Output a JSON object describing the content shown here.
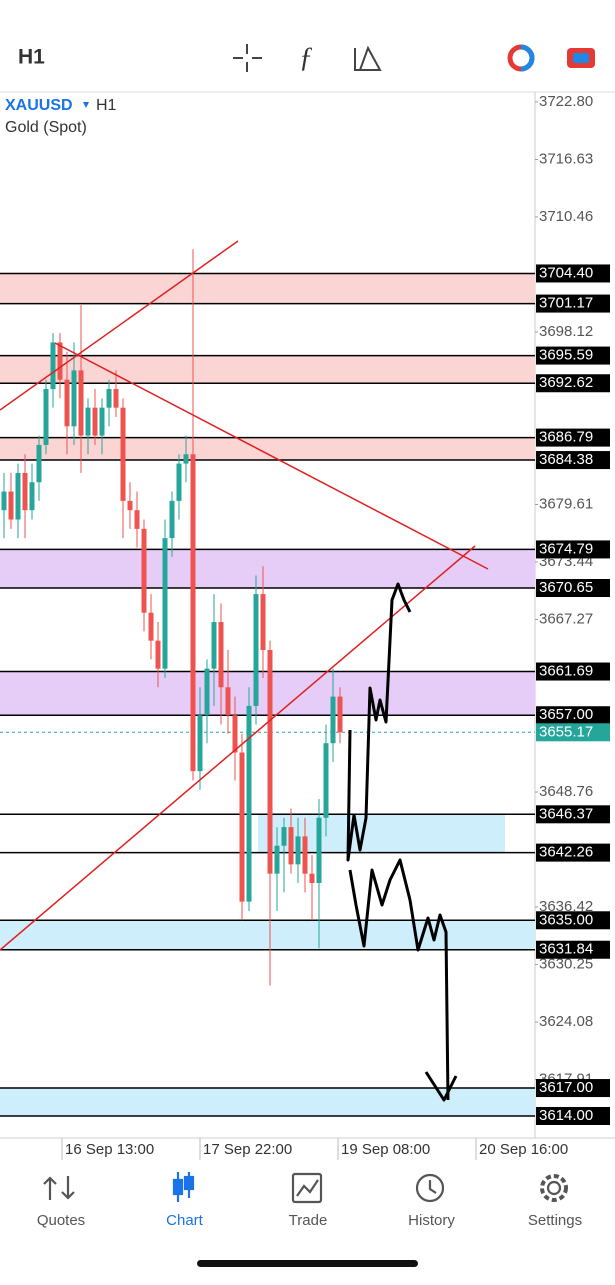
{
  "top_bar": {
    "timeframe": "H1"
  },
  "chart_data": {
    "type": "candlestick",
    "symbol": "XAUUSD",
    "timeframe": "H1",
    "description": "Gold (Spot)",
    "ylim": [
      3611.64,
      3723.87
    ],
    "yticks": [
      {
        "value": 3722.8,
        "label": "3722.80"
      },
      3716.63,
      3710.46,
      3698.12,
      3679.61,
      3673.44,
      3667.27,
      3648.76,
      3636.42,
      3630.25,
      3624.08,
      3617.91
    ],
    "levels": [
      {
        "value": 3704.4,
        "label": "3704.40"
      },
      3701.17,
      3695.59,
      3692.62,
      3686.79,
      3684.38,
      3674.79,
      3670.65,
      3661.69,
      {
        "value": 3657,
        "label": "3657.00"
      },
      3646.37,
      3642.26,
      {
        "value": 3635,
        "label": "3635.00"
      },
      3631.84,
      {
        "value": 3617,
        "label": "3617.00"
      },
      {
        "value": 3614,
        "label": "3614.00"
      }
    ],
    "zones": [
      {
        "high": 3704.4,
        "low": 3701.17,
        "color": "#fbd4d4"
      },
      {
        "high": 3695.59,
        "low": 3692.62,
        "color": "#fbd4d4"
      },
      {
        "high": 3686.79,
        "low": 3684.38,
        "color": "#fbd4d4"
      },
      {
        "high": 3674.79,
        "low": 3670.65,
        "color": "#e6cdf7"
      },
      {
        "high": 3661.69,
        "low": 3657,
        "color": "#e6cdf7"
      },
      {
        "high": 3646.37,
        "low": 3642.26,
        "color": "#cdeefa",
        "partial": true
      },
      {
        "high": 3635,
        "low": 3631.84,
        "color": "#cdeefa"
      },
      {
        "high": 3617,
        "low": 3614,
        "color": "#cdeefa"
      }
    ],
    "current_price": 3655.17,
    "up_color": "#26a69a",
    "down_color": "#ef5350",
    "x_labels": [
      "16 Sep 13:00",
      "17 Sep 22:00",
      "19 Sep 08:00",
      "20 Sep 16:00"
    ],
    "candles": [
      [
        3679,
        3683,
        3676,
        3681
      ],
      [
        3681,
        3683,
        3677,
        3678
      ],
      [
        3678,
        3684,
        3676,
        3683
      ],
      [
        3683,
        3685,
        3676,
        3679
      ],
      [
        3679,
        3684,
        3678,
        3682
      ],
      [
        3682,
        3687,
        3680,
        3686
      ],
      [
        3686,
        3693,
        3685,
        3692
      ],
      [
        3692,
        3698,
        3690,
        3697
      ],
      [
        3697,
        3698,
        3691,
        3693
      ],
      [
        3693,
        3696,
        3685,
        3688
      ],
      [
        3688,
        3697,
        3686,
        3694
      ],
      [
        3694,
        3701,
        3683,
        3687
      ],
      [
        3687,
        3691,
        3685,
        3690
      ],
      [
        3690,
        3692,
        3686,
        3687
      ],
      [
        3687,
        3691,
        3685,
        3690
      ],
      [
        3690,
        3693,
        3688,
        3692
      ],
      [
        3692,
        3694,
        3689,
        3690
      ],
      [
        3690,
        3691,
        3676,
        3680
      ],
      [
        3680,
        3682,
        3677,
        3679
      ],
      [
        3679,
        3681,
        3675,
        3677
      ],
      [
        3677,
        3678,
        3666,
        3668
      ],
      [
        3668,
        3670,
        3663,
        3665
      ],
      [
        3665,
        3667,
        3660,
        3662
      ],
      [
        3662,
        3678,
        3661,
        3676
      ],
      [
        3676,
        3681,
        3674,
        3680
      ],
      [
        3680,
        3685,
        3678,
        3684
      ],
      [
        3684,
        3687,
        3682,
        3685
      ],
      [
        3685,
        3707,
        3650,
        3651
      ],
      [
        3651,
        3660,
        3649,
        3657
      ],
      [
        3657,
        3663,
        3654,
        3662
      ],
      [
        3662,
        3670,
        3658,
        3667
      ],
      [
        3667,
        3669,
        3656,
        3660
      ],
      [
        3660,
        3664,
        3655,
        3657
      ],
      [
        3657,
        3659,
        3650,
        3653
      ],
      [
        3653,
        3655,
        3635,
        3637
      ],
      [
        3637,
        3660,
        3636,
        3658
      ],
      [
        3658,
        3672,
        3656,
        3670
      ],
      [
        3670,
        3673,
        3661,
        3664
      ],
      [
        3664,
        3665,
        3628,
        3640
      ],
      [
        3640,
        3645,
        3636,
        3643
      ],
      [
        3643,
        3646,
        3638,
        3645
      ],
      [
        3645,
        3647,
        3640,
        3641
      ],
      [
        3641,
        3646,
        3639,
        3644
      ],
      [
        3644,
        3646,
        3638,
        3640
      ],
      [
        3640,
        3642,
        3635,
        3639
      ],
      [
        3639,
        3648,
        3632,
        3646
      ],
      [
        3646,
        3656,
        3644,
        3654
      ],
      [
        3654,
        3662,
        3652,
        3659
      ],
      [
        3659,
        3660,
        3654,
        3655.17
      ]
    ]
  },
  "nav": [
    {
      "label": "Quotes"
    },
    {
      "label": "Chart",
      "active": true
    },
    {
      "label": "Trade"
    },
    {
      "label": "History"
    },
    {
      "label": "Settings"
    }
  ]
}
